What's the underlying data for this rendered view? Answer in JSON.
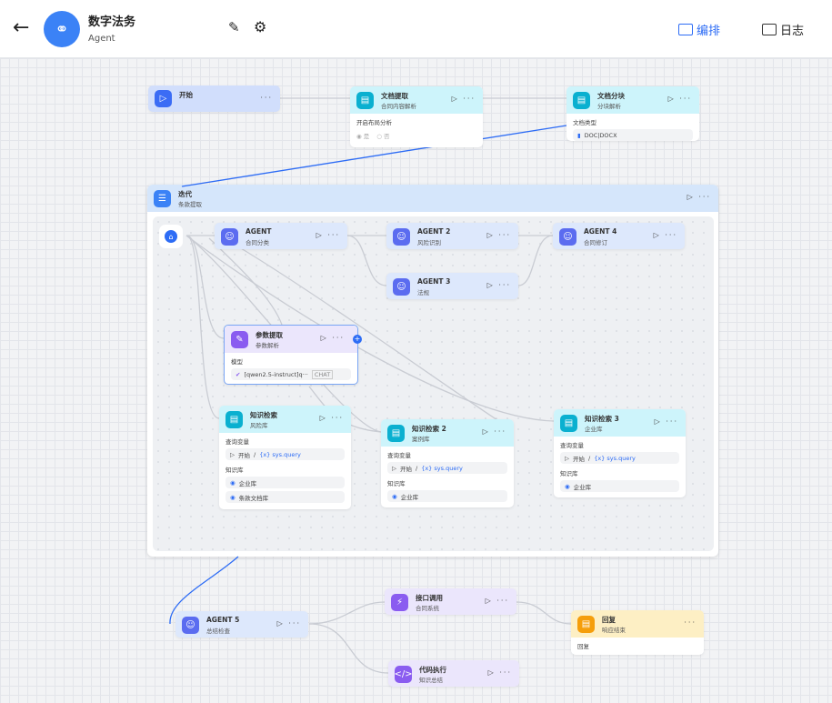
{
  "header": {
    "title": "数字法务",
    "subtitle": "Agent",
    "tabs": [
      {
        "label": "编排",
        "active": true
      },
      {
        "label": "日志",
        "active": false
      }
    ],
    "accent": "#2d6cf5"
  },
  "nodes": {
    "start": {
      "title": "开始"
    },
    "doc_extract": {
      "title": "文档提取",
      "subtitle": "合同内容解析",
      "field_label": "开启布局分析",
      "options": [
        "是",
        "否"
      ]
    },
    "doc_chunk": {
      "title": "文档分块",
      "subtitle": "分块解析",
      "field_label": "文档类型",
      "value": "DOC|DOCX"
    },
    "iteration": {
      "title": "迭代",
      "subtitle": "条款提取"
    },
    "agent1": {
      "title": "AGENT",
      "subtitle": "合同分类"
    },
    "agent2": {
      "title": "AGENT 2",
      "subtitle": "风险识别"
    },
    "agent3": {
      "title": "AGENT 3",
      "subtitle": "法规"
    },
    "agent4": {
      "title": "AGENT 4",
      "subtitle": "合同修订"
    },
    "param": {
      "title": "参数提取",
      "subtitle": "参数解析",
      "field_label": "模型",
      "model": "[qwen2.5-instruct]q···",
      "badge": "CHAT"
    },
    "kb1": {
      "title": "知识检索",
      "subtitle": "风险库",
      "query_label": "查询变量",
      "query_src": "开始",
      "query_var": "{x} sys.query",
      "kb_label": "知识库",
      "kbs": [
        "企业库",
        "条款文档库"
      ]
    },
    "kb2": {
      "title": "知识检索 2",
      "subtitle": "案例库",
      "query_label": "查询变量",
      "query_src": "开始",
      "query_var": "{x} sys.query",
      "kb_label": "知识库",
      "kbs": [
        "企业库"
      ]
    },
    "kb3": {
      "title": "知识检索 3",
      "subtitle": "企业库",
      "query_label": "查询变量",
      "query_src": "开始",
      "query_var": "{x} sys.query",
      "kb_label": "知识库",
      "kbs": [
        "企业库"
      ]
    },
    "agent5": {
      "title": "AGENT 5",
      "subtitle": "总结检查"
    },
    "api": {
      "title": "接口调用",
      "subtitle": "合同系统"
    },
    "reply": {
      "title": "回复",
      "subtitle": "响应结束",
      "body": "回复"
    },
    "code": {
      "title": "代码执行",
      "subtitle": "知识总结"
    }
  }
}
